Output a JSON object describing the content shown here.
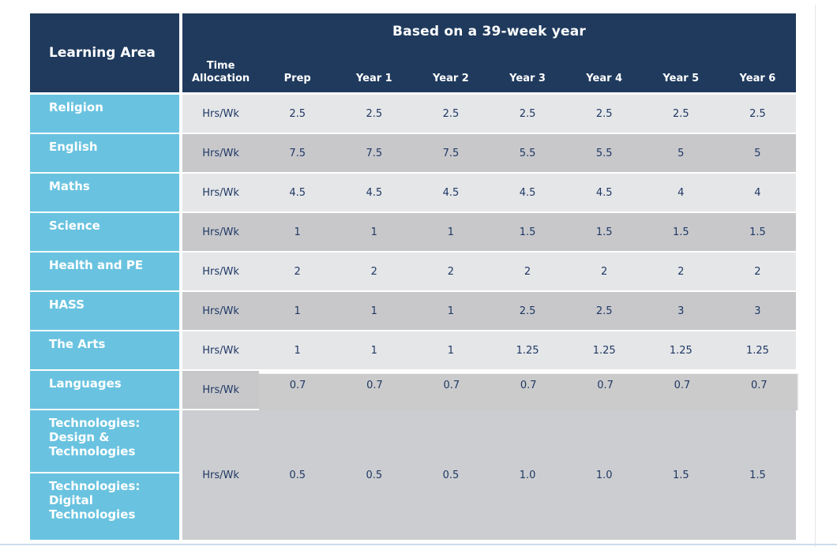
{
  "colors": {
    "header_bg": "#1f3a5d",
    "header_text": "#ffffff",
    "label_bg": "#69c3e0",
    "label_text": "#ffffff",
    "row_light": "#e5e6e8",
    "row_dark": "#c8c8cb",
    "merged_bg": "#cccdd0",
    "overlay_bg": "#cbcbcb",
    "value_text": "#1f3864",
    "bottom_line": "#ccdcea",
    "page_edge": "#e6e6e8"
  },
  "table": {
    "corner_header": "Learning Area",
    "span_header": "Based on a 39-week year",
    "column_headers": [
      "Time Allocation",
      "Prep",
      "Year 1",
      "Year 2",
      "Year 3",
      "Year 4",
      "Year 5",
      "Year 6"
    ],
    "rows": [
      {
        "label": "Religion",
        "unit": "Hrs/Wk",
        "values": [
          "2.5",
          "2.5",
          "2.5",
          "2.5",
          "2.5",
          "2.5",
          "2.5"
        ]
      },
      {
        "label": "English",
        "unit": "Hrs/Wk",
        "values": [
          "7.5",
          "7.5",
          "7.5",
          "5.5",
          "5.5",
          "5",
          "5"
        ]
      },
      {
        "label": "Maths",
        "unit": "Hrs/Wk",
        "values": [
          "4.5",
          "4.5",
          "4.5",
          "4.5",
          "4.5",
          "4",
          "4"
        ]
      },
      {
        "label": "Science",
        "unit": "Hrs/Wk",
        "values": [
          "1",
          "1",
          "1",
          "1.5",
          "1.5",
          "1.5",
          "1.5"
        ]
      },
      {
        "label": "Health and PE",
        "unit": "Hrs/Wk",
        "values": [
          "2",
          "2",
          "2",
          "2",
          "2",
          "2",
          "2"
        ]
      },
      {
        "label": "HASS",
        "unit": "Hrs/Wk",
        "values": [
          "1",
          "1",
          "1",
          "2.5",
          "2.5",
          "3",
          "3"
        ]
      },
      {
        "label": "The Arts",
        "unit": "Hrs/Wk",
        "values": [
          "1",
          "1",
          "1",
          "1.25",
          "1.25",
          "1.25",
          "1.25"
        ]
      },
      {
        "label": "Languages",
        "unit": "Hrs/Wk",
        "values": [
          "0.7",
          "0.7",
          "0.7",
          "0.7",
          "0.7",
          "0.7",
          "0.7"
        ]
      }
    ],
    "merged_row": {
      "labels": [
        "Technologies: Design & Technologies",
        "Technologies: Digital Technologies"
      ],
      "unit": "Hrs/Wk",
      "values": [
        "0.5",
        "0.5",
        "0.5",
        "1.0",
        "1.0",
        "1.5",
        "1.5"
      ]
    }
  }
}
